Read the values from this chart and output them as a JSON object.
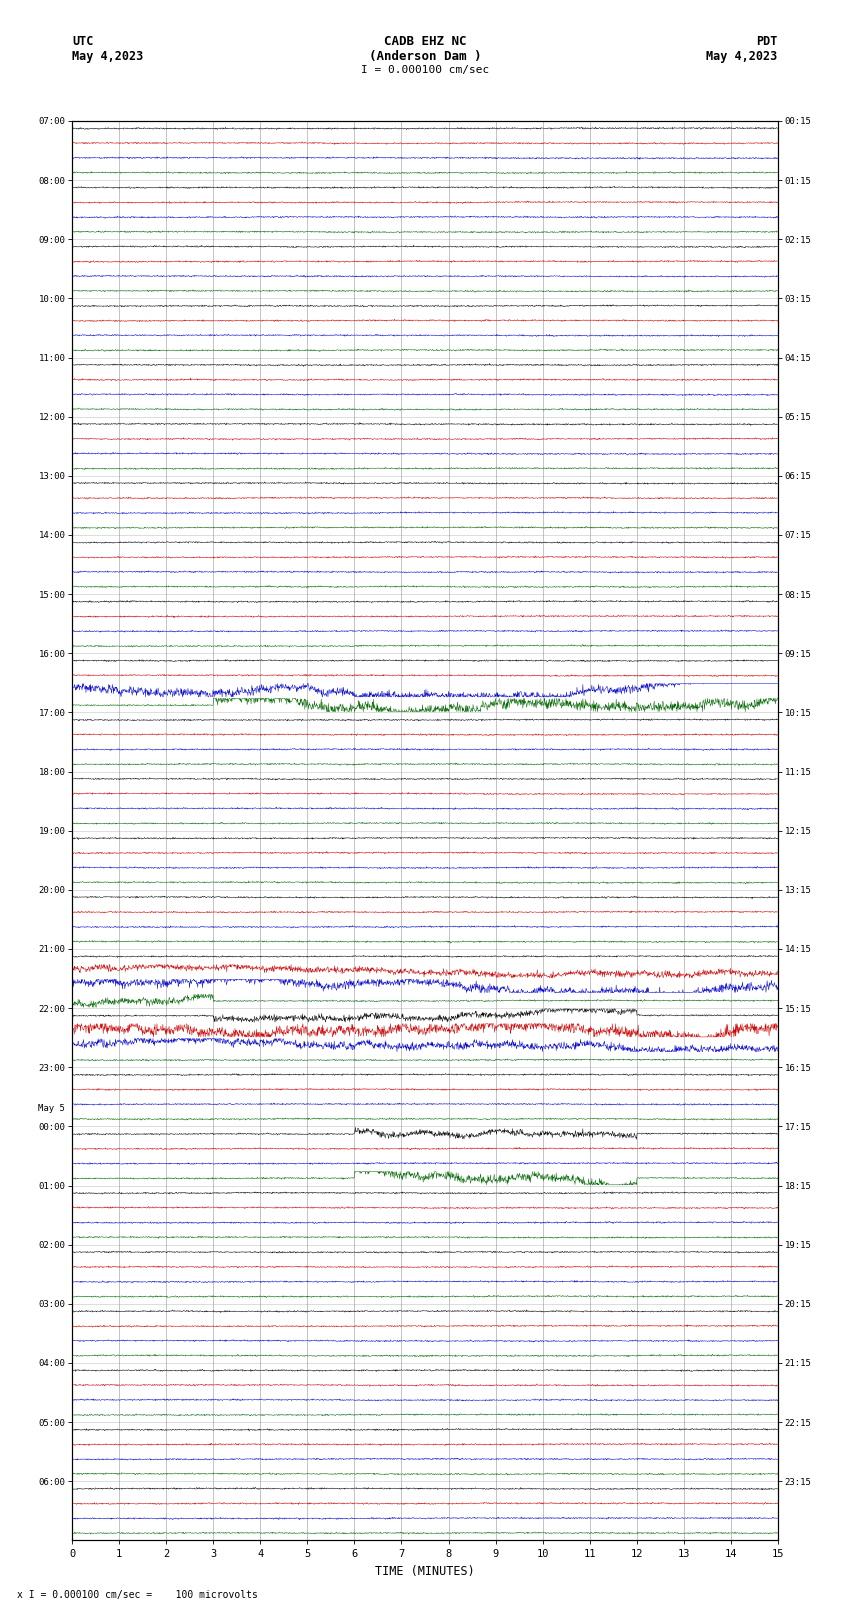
{
  "title_line1": "CADB EHZ NC",
  "title_line2": "(Anderson Dam )",
  "title_scale": "I = 0.000100 cm/sec",
  "label_left_top": "UTC",
  "label_left_date": "May 4,2023",
  "label_right_top": "PDT",
  "label_right_date": "May 4,2023",
  "xlabel": "TIME (MINUTES)",
  "footer": "x I = 0.000100 cm/sec =    100 microvolts",
  "bg_color": "#ffffff",
  "line_color_black": "#000000",
  "line_color_red": "#cc0000",
  "line_color_blue": "#0000cc",
  "line_color_green": "#006600",
  "vgrid_color": "#888888",
  "hgrid_color": "#888888",
  "figsize": [
    8.5,
    16.13
  ],
  "dpi": 100,
  "left_hour_labels": [
    "07:00",
    "08:00",
    "09:00",
    "10:00",
    "11:00",
    "12:00",
    "13:00",
    "14:00",
    "15:00",
    "16:00",
    "17:00",
    "18:00",
    "19:00",
    "20:00",
    "21:00",
    "22:00",
    "23:00",
    "00:00",
    "01:00",
    "02:00",
    "03:00",
    "04:00",
    "05:00",
    "06:00"
  ],
  "may5_row": 17,
  "right_hour_labels": [
    "00:15",
    "01:15",
    "02:15",
    "03:15",
    "04:15",
    "05:15",
    "06:15",
    "07:15",
    "08:15",
    "09:15",
    "10:15",
    "11:15",
    "12:15",
    "13:15",
    "14:15",
    "15:15",
    "16:15",
    "17:15",
    "18:15",
    "19:15",
    "20:15",
    "21:15",
    "22:15",
    "23:15"
  ],
  "total_hours": 24,
  "traces_per_hour": 4,
  "noise_scale": 0.06,
  "signal_events": [
    {
      "hour": 9,
      "trace": 2,
      "start": 0.0,
      "end": 15.0,
      "amp": 0.35
    },
    {
      "hour": 9,
      "trace": 3,
      "start": 3.0,
      "end": 15.0,
      "amp": 0.45
    },
    {
      "hour": 14,
      "trace": 1,
      "start": 0.0,
      "end": 15.0,
      "amp": 0.25
    },
    {
      "hour": 14,
      "trace": 2,
      "start": 0.0,
      "end": 15.0,
      "amp": 0.35
    },
    {
      "hour": 14,
      "trace": 3,
      "start": 0.0,
      "end": 3.0,
      "amp": 0.3
    },
    {
      "hour": 15,
      "trace": 0,
      "start": 3.0,
      "end": 12.0,
      "amp": 0.25
    },
    {
      "hour": 15,
      "trace": 1,
      "start": 0.0,
      "end": 15.0,
      "amp": 0.45
    },
    {
      "hour": 15,
      "trace": 2,
      "start": 0.0,
      "end": 15.0,
      "amp": 0.3
    },
    {
      "hour": 17,
      "trace": 3,
      "start": 6.0,
      "end": 12.0,
      "amp": 0.35
    },
    {
      "hour": 17,
      "trace": 0,
      "start": 6.0,
      "end": 12.0,
      "amp": 0.25
    }
  ]
}
